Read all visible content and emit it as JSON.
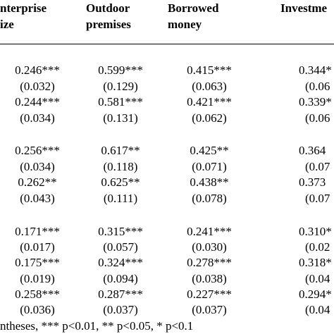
{
  "header": {
    "columns": [
      [
        "nterprise",
        "ize"
      ],
      [
        "Outdoor",
        "premises"
      ],
      [
        "Borrowed",
        "money"
      ],
      [
        "Investme"
      ]
    ]
  },
  "table": {
    "rows": [
      [
        "0.246***",
        "0.599***",
        "0.415***",
        "0.344*"
      ],
      [
        "(0.032)",
        "(0.129)",
        "(0.063)",
        "(0.06"
      ],
      [
        "0.244***",
        "0.581***",
        "0.421***",
        "0.339*"
      ],
      [
        "(0.034)",
        "(0.131)",
        "(0.062)",
        "(0.06"
      ],
      [
        "0.256***",
        "0.617**",
        "0.425**",
        "0.364"
      ],
      [
        "(0.034)",
        "(0.118)",
        "(0.071)",
        "(0.07"
      ],
      [
        "0.262**",
        "0.625**",
        "0.438**",
        "0.373"
      ],
      [
        "(0.043)",
        "(0.111)",
        "(0.078)",
        "(0.07"
      ],
      [
        "0.171***",
        "0.315***",
        "0.241***",
        "0.310*"
      ],
      [
        "(0.017)",
        "(0.057)",
        "(0.030)",
        "(0.02"
      ],
      [
        "0.175***",
        "0.324***",
        "0.278***",
        "0.318*"
      ],
      [
        "(0.019)",
        "(0.094)",
        "(0.038)",
        "(0.04"
      ],
      [
        "0.258***",
        "0.287***",
        "0.227***",
        "0.294*"
      ],
      [
        "(0.036)",
        "(0.037)",
        "(0.037)",
        "(0.04"
      ]
    ]
  },
  "footer": {
    "note": "ntheses, *** p<0.01, ** p<0.05, * p<0.1"
  }
}
